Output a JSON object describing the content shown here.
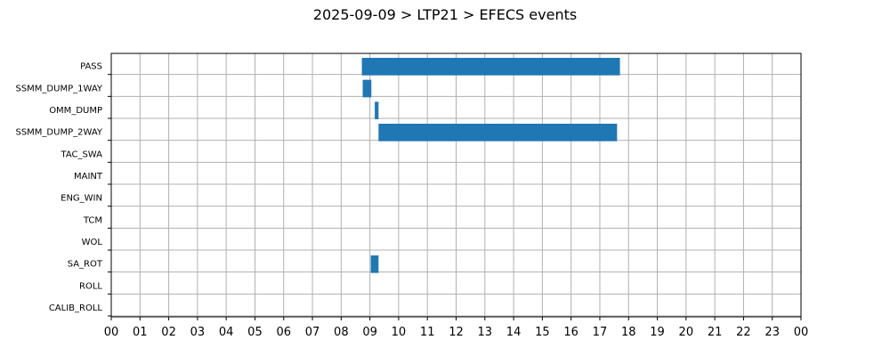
{
  "chart_data": {
    "type": "gantt",
    "title": "2025-09-09 > LTP21 > EFECS events",
    "xlabel": "",
    "ylabel": "",
    "x_unit": "hour of day",
    "xlim": [
      0,
      24
    ],
    "x_tick_labels": [
      "00",
      "01",
      "02",
      "03",
      "04",
      "05",
      "06",
      "07",
      "08",
      "09",
      "10",
      "11",
      "12",
      "13",
      "14",
      "15",
      "16",
      "17",
      "18",
      "19",
      "20",
      "21",
      "22",
      "23",
      "00"
    ],
    "categories": [
      "PASS",
      "SSMM_DUMP_1WAY",
      "OMM_DUMP",
      "SSMM_DUMP_2WAY",
      "TAC_SWA",
      "MAINT",
      "ENG_WIN",
      "TCM",
      "WOL",
      "SA_ROT",
      "ROLL",
      "CALIB_ROLL"
    ],
    "intervals": [
      {
        "category": "PASS",
        "start": 8.72,
        "end": 17.7
      },
      {
        "category": "SSMM_DUMP_1WAY",
        "start": 8.75,
        "end": 9.05
      },
      {
        "category": "OMM_DUMP",
        "start": 9.17,
        "end": 9.3
      },
      {
        "category": "SSMM_DUMP_2WAY",
        "start": 9.3,
        "end": 17.6
      },
      {
        "category": "SA_ROT",
        "start": 9.03,
        "end": 9.3
      }
    ],
    "bar_color": "#1f77b4",
    "grid": true,
    "legend": "none"
  }
}
